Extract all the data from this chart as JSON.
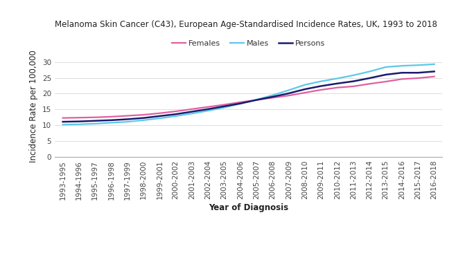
{
  "title": "Melanoma Skin Cancer (C43), European Age-Standardised Incidence Rates, UK, 1993 to 2018",
  "xlabel": "Year of Diagnosis",
  "ylabel": "Incidence Rate per 100,000",
  "x_labels": [
    "1993-1995",
    "1994-1996",
    "1995-1997",
    "1996-1998",
    "1997-1999",
    "1998-2000",
    "1999-2001",
    "2000-2002",
    "2001-2003",
    "2002-2004",
    "2003-2005",
    "2004-2006",
    "2005-2007",
    "2006-2008",
    "2007-2009",
    "2008-2010",
    "2009-2011",
    "2010-2012",
    "2011-2013",
    "2012-2014",
    "2013-2015",
    "2014-2016",
    "2015-2017",
    "2016-2018"
  ],
  "females": [
    12.3,
    12.4,
    12.5,
    12.7,
    13.0,
    13.3,
    13.8,
    14.4,
    15.1,
    15.8,
    16.5,
    17.3,
    18.0,
    18.7,
    19.4,
    20.3,
    21.2,
    21.9,
    22.3,
    23.1,
    23.8,
    24.6,
    24.9,
    25.4
  ],
  "males": [
    10.2,
    10.3,
    10.5,
    10.8,
    11.1,
    11.6,
    12.2,
    12.9,
    13.7,
    14.6,
    15.6,
    16.8,
    18.1,
    19.5,
    21.1,
    22.8,
    23.9,
    24.8,
    25.8,
    27.0,
    28.4,
    28.8,
    29.0,
    29.3
  ],
  "persons": [
    11.1,
    11.2,
    11.4,
    11.6,
    11.9,
    12.3,
    12.9,
    13.5,
    14.3,
    15.1,
    16.0,
    16.9,
    18.0,
    19.0,
    20.1,
    21.4,
    22.4,
    23.2,
    23.9,
    24.9,
    26.0,
    26.6,
    26.6,
    27.0
  ],
  "females_color": "#e05fa0",
  "males_color": "#5bc8e8",
  "persons_color": "#1a1a6e",
  "ylim": [
    0,
    32
  ],
  "yticks": [
    0,
    5,
    10,
    15,
    20,
    25,
    30
  ],
  "title_fontsize": 8.5,
  "axis_label_fontsize": 8.5,
  "tick_fontsize": 7.5,
  "legend_fontsize": 8,
  "background_color": "#ffffff",
  "grid_color": "#d8d8d8"
}
